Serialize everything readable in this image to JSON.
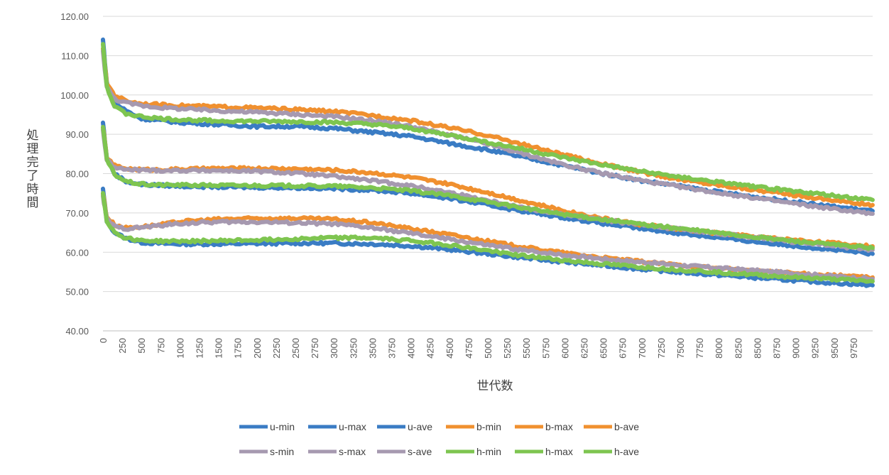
{
  "chart_data": {
    "type": "line",
    "xlabel": "世代数",
    "ylabel": "処理完了時間",
    "ylim": [
      40,
      120
    ],
    "y_ticks": [
      "40.00",
      "50.00",
      "60.00",
      "70.00",
      "80.00",
      "90.00",
      "100.00",
      "110.00",
      "120.00"
    ],
    "xlim": [
      0,
      10000
    ],
    "x_ticks": [
      "0",
      "250",
      "500",
      "750",
      "1000",
      "1250",
      "1500",
      "1750",
      "2000",
      "2250",
      "2500",
      "2750",
      "3000",
      "3250",
      "3500",
      "3750",
      "4000",
      "4250",
      "4500",
      "4750",
      "5000",
      "5250",
      "5500",
      "5750",
      "6000",
      "6250",
      "6500",
      "6750",
      "7000",
      "7250",
      "7500",
      "7750",
      "8000",
      "8250",
      "8500",
      "8750",
      "9000",
      "9250",
      "9500",
      "9750"
    ],
    "grid": true,
    "legend_position": "bottom",
    "colors": {
      "u": "#4472c4",
      "b": "#ed7d31",
      "s": "#a5a5a5",
      "h": "#70ad47"
    },
    "series": [
      {
        "name": "u-min",
        "color": "#3a7cc4",
        "x": [
          0,
          50,
          150,
          300,
          500,
          750,
          1000,
          1500,
          2000,
          2500,
          3000,
          3500,
          4000,
          4500,
          5000,
          5500,
          6000,
          6500,
          7000,
          7500,
          8000,
          8500,
          9000,
          9500,
          9999
        ],
        "y": [
          76,
          68,
          65,
          63.5,
          62.5,
          62.2,
          62.1,
          62.1,
          62.2,
          62.3,
          62.3,
          62.1,
          61.6,
          60.7,
          59.6,
          58.5,
          57.5,
          56.6,
          55.7,
          54.9,
          54.2,
          53.5,
          52.8,
          52.2,
          51.6
        ]
      },
      {
        "name": "u-max",
        "color": "#3a7cc4",
        "x": [
          0,
          50,
          150,
          300,
          500,
          750,
          1000,
          1500,
          2000,
          2500,
          3000,
          3500,
          4000,
          4500,
          5000,
          5500,
          6000,
          6500,
          7000,
          7500,
          8000,
          8500,
          9000,
          9500,
          9999
        ],
        "y": [
          114,
          103,
          98,
          96,
          94,
          93.5,
          93,
          92.5,
          92,
          92,
          91.5,
          90.5,
          89.5,
          87.7,
          86,
          84,
          82,
          80,
          78.2,
          76.8,
          75.3,
          74,
          72.8,
          71.6,
          70.5
        ]
      },
      {
        "name": "u-ave",
        "color": "#3a7cc4",
        "x": [
          0,
          50,
          150,
          300,
          500,
          750,
          1000,
          1500,
          2000,
          2500,
          3000,
          3500,
          4000,
          4500,
          5000,
          5500,
          6000,
          6500,
          7000,
          7500,
          8000,
          8500,
          9000,
          9500,
          9999
        ],
        "y": [
          93,
          84,
          80,
          78,
          77.2,
          77,
          76.8,
          76.6,
          76.5,
          76.4,
          76.2,
          75.8,
          75,
          73.7,
          72,
          70.3,
          68.8,
          67.3,
          66,
          64.8,
          63.7,
          62.6,
          61.6,
          60.6,
          59.6
        ]
      },
      {
        "name": "b-min",
        "color": "#f0902f",
        "x": [
          0,
          50,
          150,
          300,
          500,
          750,
          1000,
          1500,
          2000,
          2500,
          3000,
          3500,
          4000,
          4500,
          5000,
          5500,
          6000,
          6500,
          7000,
          7500,
          8000,
          8500,
          9000,
          9500,
          9999
        ],
        "y": [
          75,
          69,
          67,
          66.2,
          66.5,
          67,
          67.8,
          68.4,
          68.6,
          68.6,
          68.4,
          67.5,
          66,
          64.5,
          62.8,
          61.2,
          59.8,
          58.6,
          57.6,
          56.7,
          55.9,
          55.2,
          54.6,
          54.1,
          53.6
        ]
      },
      {
        "name": "b-max",
        "color": "#f0902f",
        "x": [
          0,
          50,
          150,
          300,
          500,
          750,
          1000,
          1500,
          2000,
          2500,
          3000,
          3500,
          4000,
          4500,
          5000,
          5500,
          6000,
          6500,
          7000,
          7500,
          8000,
          8500,
          9000,
          9500,
          9999
        ],
        "y": [
          112,
          103,
          100,
          98.5,
          97.8,
          97.5,
          97.3,
          97,
          96.7,
          96.3,
          95.8,
          94.8,
          93.5,
          91.7,
          89.7,
          87.2,
          84.7,
          82.4,
          80.3,
          78.5,
          77.1,
          75.8,
          74.5,
          73.2,
          72
        ]
      },
      {
        "name": "b-ave",
        "color": "#f0902f",
        "x": [
          0,
          50,
          150,
          300,
          500,
          750,
          1000,
          1500,
          2000,
          2500,
          3000,
          3500,
          4000,
          4500,
          5000,
          5500,
          6000,
          6500,
          7000,
          7500,
          8000,
          8500,
          9000,
          9500,
          9999
        ],
        "y": [
          92,
          84,
          82,
          81.3,
          81,
          81,
          81.1,
          81.3,
          81.3,
          81.2,
          80.9,
          80.2,
          79,
          77.3,
          75.2,
          72.8,
          70.5,
          68.6,
          67,
          65.8,
          64.8,
          63.9,
          63.1,
          62.3,
          61.5
        ]
      },
      {
        "name": "s-min",
        "color": "#a699b0",
        "x": [
          0,
          50,
          150,
          300,
          500,
          750,
          1000,
          1500,
          2000,
          2500,
          3000,
          3500,
          4000,
          4500,
          5000,
          5500,
          6000,
          6500,
          7000,
          7500,
          8000,
          8500,
          9000,
          9500,
          9999
        ],
        "y": [
          74,
          68.5,
          66.5,
          66,
          66.3,
          66.8,
          67.3,
          67.7,
          67.7,
          67.5,
          67.2,
          66.2,
          64.8,
          63.3,
          61.8,
          60.4,
          59.3,
          58.3,
          57.5,
          56.7,
          56,
          55.3,
          54.6,
          53.9,
          53.2
        ]
      },
      {
        "name": "s-max",
        "color": "#a699b0",
        "x": [
          0,
          50,
          150,
          300,
          500,
          750,
          1000,
          1500,
          2000,
          2500,
          3000,
          3500,
          4000,
          4500,
          5000,
          5500,
          6000,
          6500,
          7000,
          7500,
          8000,
          8500,
          9000,
          9500,
          9999
        ],
        "y": [
          111,
          102,
          99,
          98,
          97.3,
          96.8,
          96.5,
          96,
          95.6,
          95.1,
          94.5,
          93.5,
          92,
          89.8,
          87.5,
          84.8,
          82.2,
          80,
          78.2,
          76.6,
          75.1,
          73.7,
          72.3,
          71,
          69.8
        ]
      },
      {
        "name": "s-ave",
        "color": "#a699b0",
        "x": [
          0,
          50,
          150,
          300,
          500,
          750,
          1000,
          1500,
          2000,
          2500,
          3000,
          3500,
          4000,
          4500,
          5000,
          5500,
          6000,
          6500,
          7000,
          7500,
          8000,
          8500,
          9000,
          9500,
          9999
        ],
        "y": [
          91,
          83.5,
          81.5,
          81,
          80.9,
          80.8,
          80.8,
          80.8,
          80.6,
          80.1,
          79.3,
          78.2,
          76.9,
          75.2,
          73.2,
          71.2,
          69.5,
          68.2,
          67,
          65.9,
          64.8,
          63.7,
          62.6,
          61.6,
          60.6
        ]
      },
      {
        "name": "h-min",
        "color": "#7ec550",
        "x": [
          0,
          50,
          150,
          300,
          500,
          750,
          1000,
          1500,
          2000,
          2500,
          3000,
          3500,
          4000,
          4500,
          5000,
          5500,
          6000,
          6500,
          7000,
          7500,
          8000,
          8500,
          9000,
          9500,
          9999
        ],
        "y": [
          75,
          68,
          65,
          63.6,
          63,
          62.8,
          62.8,
          62.9,
          63.1,
          63.4,
          63.7,
          63.6,
          63,
          61.8,
          60.4,
          59,
          57.9,
          57,
          56.2,
          55.5,
          54.9,
          54.2,
          53.6,
          53.1,
          52.6
        ]
      },
      {
        "name": "h-max",
        "color": "#7ec550",
        "x": [
          0,
          50,
          150,
          300,
          500,
          750,
          1000,
          1500,
          2000,
          2500,
          3000,
          3500,
          4000,
          4500,
          5000,
          5500,
          6000,
          6500,
          7000,
          7500,
          8000,
          8500,
          9000,
          9500,
          9999
        ],
        "y": [
          113,
          102,
          97,
          95.3,
          94.5,
          94,
          93.7,
          93.4,
          93.3,
          93.2,
          93,
          92.5,
          91.5,
          89.8,
          88,
          86,
          84,
          82.2,
          80.5,
          79.1,
          77.8,
          76.6,
          75.5,
          74.4,
          73.3
        ]
      },
      {
        "name": "h-ave",
        "color": "#7ec550",
        "x": [
          0,
          50,
          150,
          300,
          500,
          750,
          1000,
          1500,
          2000,
          2500,
          3000,
          3500,
          4000,
          4500,
          5000,
          5500,
          6000,
          6500,
          7000,
          7500,
          8000,
          8500,
          9000,
          9500,
          9999
        ],
        "y": [
          92,
          83.5,
          79.8,
          78,
          77.3,
          77.1,
          77.1,
          77,
          77,
          76.9,
          76.8,
          76.4,
          75.6,
          74.4,
          72.8,
          71.1,
          69.6,
          68.3,
          67.1,
          66,
          64.9,
          63.8,
          62.8,
          61.9,
          61.1
        ]
      }
    ]
  }
}
